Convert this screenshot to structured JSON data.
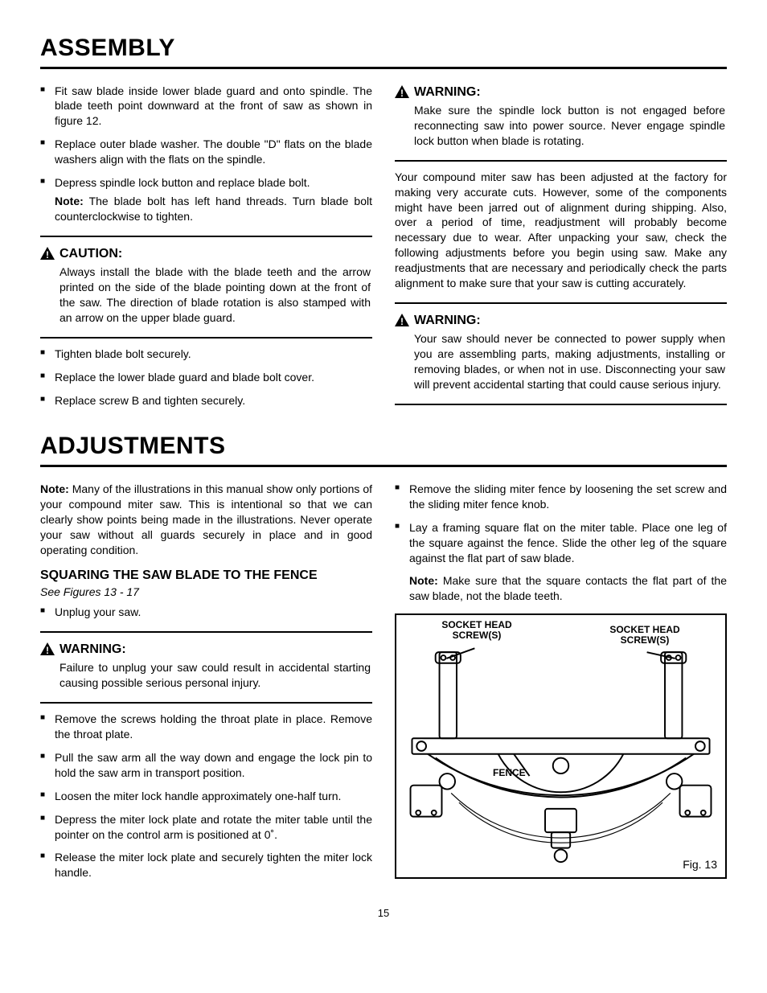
{
  "page_number": "15",
  "headings": {
    "assembly": "ASSEMBLY",
    "adjustments": "ADJUSTMENTS",
    "squaring": "SQUARING THE SAW BLADE TO THE FENCE"
  },
  "assembly": {
    "left_list_a": [
      "Fit saw blade inside lower blade guard and onto spindle. The blade teeth point downward at the front of saw as shown in figure 12.",
      "Replace outer blade washer. The double \"D\" flats on the blade washers align with the flats on the spindle.",
      "Depress spindle lock button and replace blade bolt."
    ],
    "note_a_label": "Note:",
    "note_a_text": " The blade bolt has left hand threads. Turn blade bolt counterclockwise to tighten.",
    "caution_title": "CAUTION:",
    "caution_text": "Always install the blade with the blade teeth and the arrow printed on the side of the blade pointing down at the front of the saw. The direction of blade rotation is also stamped with an arrow on the upper blade guard.",
    "left_list_b": [
      "Tighten blade bolt securely.",
      "Replace the lower blade guard and blade bolt cover.",
      "Replace screw B and tighten securely."
    ],
    "warning1_title": "WARNING:",
    "warning1_text": "Make sure the spindle lock button is not engaged before reconnecting saw into power source. Never engage spindle lock button when blade is rotating.",
    "right_para": "Your compound miter saw has been adjusted at the factory for making very accurate cuts. However, some of the components might have been jarred out of alignment during shipping. Also, over a period of time, readjustment will probably become necessary due to wear. After unpacking your saw, check the following adjustments before you begin using saw. Make any readjustments that are necessary and periodically check the parts alignment to make sure that your saw is cutting accurately.",
    "warning2_title": "WARNING:",
    "warning2_text": "Your saw should never be connected to power supply when you are assembling parts, making adjustments, installing or removing blades, or when not in use. Disconnecting your saw will prevent accidental starting that could cause serious injury."
  },
  "adjustments": {
    "note_label": "Note:",
    "note_text": " Many of the illustrations in this manual show only portions of your compound miter saw. This is intentional so that we can clearly show points being made in the illustrations. Never operate your saw without all guards securely in place and in good operating condition.",
    "figref": "See Figures 13 - 17",
    "left_list_a": [
      "Unplug your saw."
    ],
    "warning_title": "WARNING:",
    "warning_text": "Failure to unplug your saw could result in accidental starting causing possible serious personal injury.",
    "left_list_b": [
      "Remove the screws holding the throat plate in place. Remove the throat plate.",
      "Pull the saw arm all the way down and engage the lock pin to hold the saw arm in transport position.",
      "Loosen the miter lock handle approximately one-half turn.",
      "Depress the miter lock plate and rotate the miter table until the pointer on the control arm is positioned at 0˚.",
      "Release the miter lock plate and securely tighten the miter lock handle."
    ],
    "right_list": [
      "Remove the sliding miter fence by loosening the set screw and the sliding miter fence knob.",
      "Lay a framing square flat on the miter table. Place one leg of the square against the fence. Slide the other leg of the square against the flat part of saw blade."
    ],
    "note2_label": "Note:",
    "note2_text": " Make sure that the square contacts the flat part of the saw blade, not the blade teeth."
  },
  "figure": {
    "caption": "Fig. 13",
    "label_left": "SOCKET HEAD\nSCREW(S)",
    "label_right": "SOCKET HEAD\nSCREW(S)",
    "label_fence": "FENCE",
    "stroke": "#000000",
    "bg": "#ffffff"
  }
}
